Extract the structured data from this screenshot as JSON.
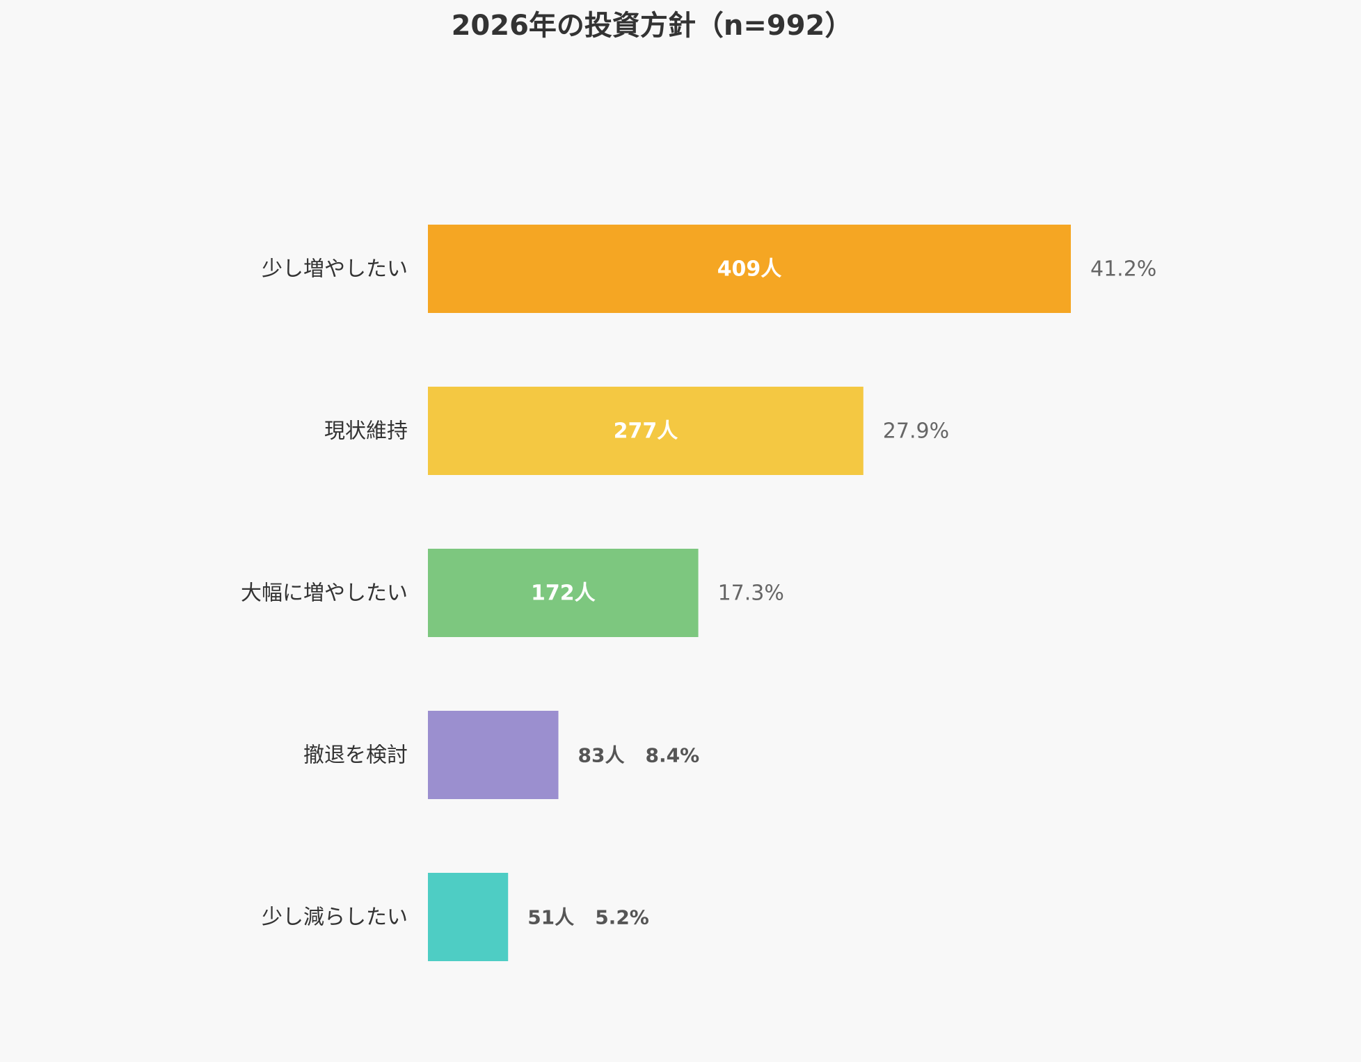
{
  "chart_data": {
    "type": "bar",
    "orientation": "horizontal",
    "title": "2026年の投資方針（n=992）",
    "categories": [
      "少し増やしたい",
      "現状維持",
      "大幅に増やしたい",
      "撤退を検討",
      "少し減らしたい"
    ],
    "values": [
      409,
      277,
      172,
      83,
      51
    ],
    "value_labels": [
      "409人",
      "277人",
      "172人",
      "83人",
      "51人"
    ],
    "percent_labels": [
      "41.2%",
      "27.9%",
      "17.3%",
      "8.4%",
      "5.2%"
    ],
    "colors": [
      "#f5a623",
      "#f4c842",
      "#7dc77f",
      "#9b8fcf",
      "#4ecdc4"
    ],
    "grid": false,
    "legend": "none",
    "xlabel": "",
    "ylabel": ""
  }
}
